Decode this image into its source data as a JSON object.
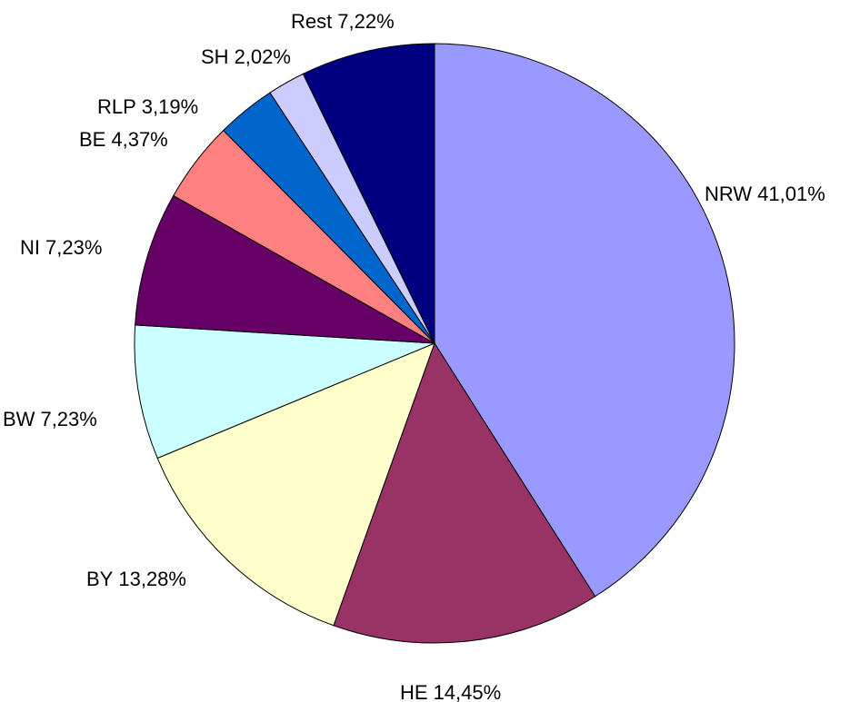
{
  "chart_data": {
    "type": "pie",
    "categories": [
      "NRW",
      "HE",
      "BY",
      "BW",
      "NI",
      "BE",
      "RLP",
      "SH",
      "Rest"
    ],
    "values": [
      41.01,
      14.45,
      13.28,
      7.23,
      7.23,
      4.37,
      3.19,
      2.02,
      7.22
    ],
    "value_labels": [
      "41,01%",
      "14,45%",
      "13,28%",
      "7,23%",
      "7,23%",
      "4,37%",
      "3,19%",
      "2,02%",
      "7,22%"
    ],
    "colors": [
      "#9999ff",
      "#993366",
      "#ffffcc",
      "#ccffff",
      "#660066",
      "#ff8080",
      "#0066cc",
      "#ccccff",
      "#000080"
    ]
  }
}
